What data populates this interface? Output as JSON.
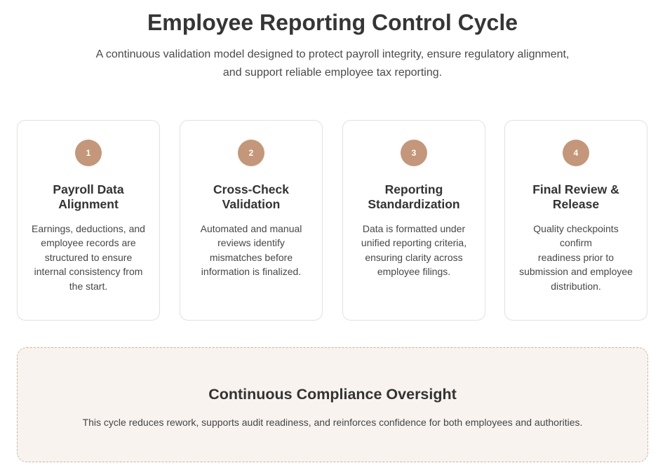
{
  "header": {
    "title": "Employee Reporting Control Cycle",
    "subtitle_line1": "A continuous validation model designed to protect payroll integrity, ensure regulatory alignment,",
    "subtitle_line2": "and support reliable employee tax reporting."
  },
  "steps": [
    {
      "number": "1",
      "title_line1": "Payroll Data",
      "title_line2": "Alignment",
      "desc_lines": [
        "Earnings, deductions, and",
        "employee records are",
        "structured to ensure",
        "internal consistency from",
        "the start."
      ]
    },
    {
      "number": "2",
      "title_line1": "Cross-Check",
      "title_line2": "Validation",
      "desc_lines": [
        "Automated and manual",
        "reviews identify",
        "mismatches before",
        "information is finalized."
      ]
    },
    {
      "number": "3",
      "title_line1": "Reporting",
      "title_line2": "Standardization",
      "desc_lines": [
        "Data is formatted under",
        "unified reporting criteria,",
        "ensuring clarity across",
        "employee filings."
      ]
    },
    {
      "number": "4",
      "title_line1": "Final Review &",
      "title_line2": "Release",
      "desc_lines": [
        "Quality checkpoints confirm",
        "readiness prior to",
        "submission and employee",
        "distribution."
      ]
    }
  ],
  "oversight": {
    "title": "Continuous Compliance Oversight",
    "text": "This cycle reduces rework, supports audit readiness, and reinforces confidence for both employees and authorities."
  },
  "colors": {
    "badge": "#c4977a",
    "panel_background": "#f8f3ef",
    "panel_border": "#d0b3a1",
    "card_border": "#e4e1de"
  }
}
